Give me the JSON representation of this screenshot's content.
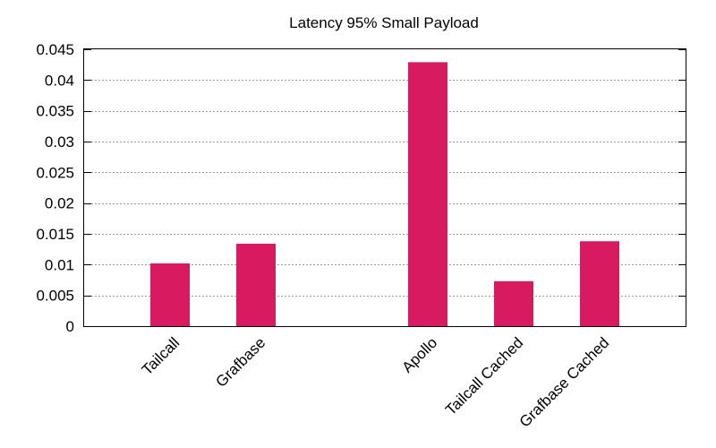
{
  "chart_data": {
    "type": "bar",
    "title": "Latency 95% Small Payload",
    "xlabel": "",
    "ylabel": "",
    "ylim": [
      0,
      0.045
    ],
    "yticks": [
      "0",
      "0.005",
      "0.01",
      "0.015",
      "0.02",
      "0.025",
      "0.03",
      "0.035",
      "0.04",
      "0.045"
    ],
    "grid": "horizontal",
    "bar_color": "#d81b60",
    "categories": [
      "Tailcall",
      "Grafbase",
      "",
      "Apollo",
      "Tailcall Cached",
      "Grafbase Cached"
    ],
    "values": [
      0.0102,
      0.0134,
      null,
      0.0429,
      0.0073,
      0.0138
    ]
  }
}
